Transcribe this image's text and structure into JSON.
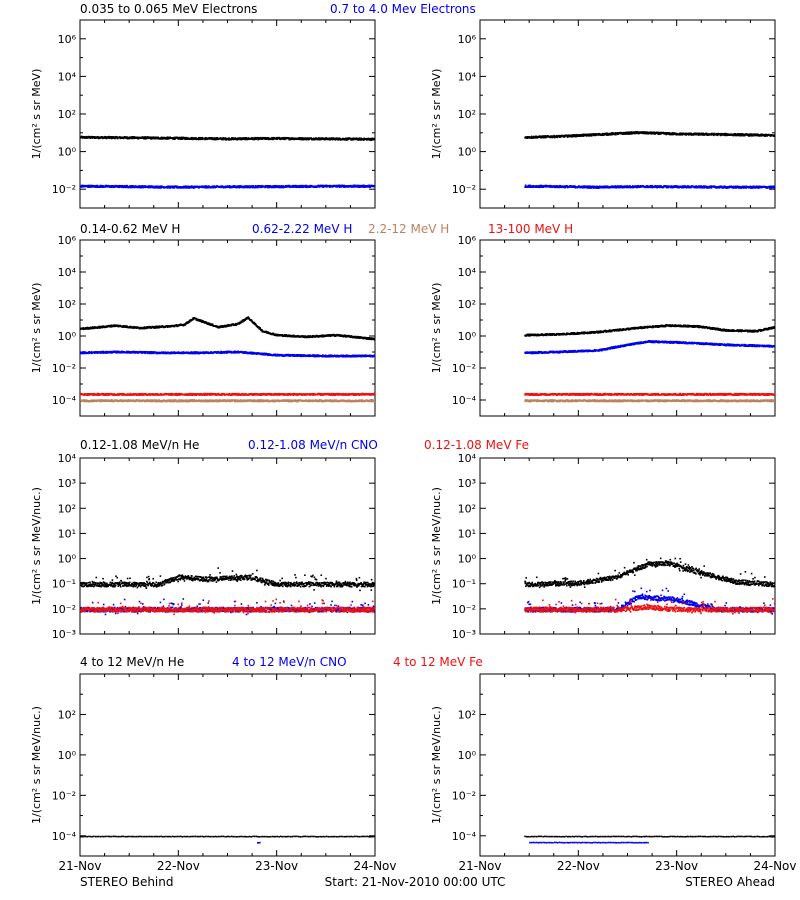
{
  "colors": {
    "black": "#000000",
    "blue": "#0000ee",
    "tan": "#c08060",
    "red": "#ee1111"
  },
  "footer": {
    "left": "STEREO Behind",
    "center": "Start: 21-Nov-2010 00:00 UTC",
    "right": "STEREO Ahead"
  },
  "x_ticks": [
    "21-Nov",
    "22-Nov",
    "23-Nov",
    "24-Nov"
  ],
  "chart_data": [
    {
      "type": "scatter",
      "panel": "electrons-behind",
      "legend": [
        {
          "text": "0.035 to 0.065 MeV Electrons",
          "color": "black"
        },
        {
          "text": "0.7 to 4.0 Mev Electrons",
          "color": "blue"
        }
      ],
      "ylabel": "1/(cm² s sr MeV)",
      "y_scale": "log",
      "ylim_exp": [
        -3,
        7
      ],
      "y_tick_exps": [
        -2,
        0,
        2,
        4,
        6
      ],
      "xlim_days": [
        0,
        3
      ],
      "series": [
        {
          "color": "black",
          "x_days": [
            0.0,
            0.5,
            1.0,
            1.5,
            2.0,
            2.5,
            3.0
          ],
          "log10_values": [
            0.8,
            0.78,
            0.75,
            0.72,
            0.74,
            0.72,
            0.7
          ]
        },
        {
          "color": "blue",
          "x_days": [
            0.0,
            0.5,
            1.0,
            1.5,
            2.0,
            2.5,
            3.0
          ],
          "log10_values": [
            -1.8,
            -1.82,
            -1.85,
            -1.83,
            -1.82,
            -1.8,
            -1.8
          ]
        }
      ]
    },
    {
      "type": "scatter",
      "panel": "electrons-ahead",
      "legend": [],
      "ylabel": "1/(cm² s sr MeV)",
      "y_scale": "log",
      "ylim_exp": [
        -3,
        7
      ],
      "y_tick_exps": [
        -2,
        0,
        2,
        4,
        6
      ],
      "xlim_days": [
        0,
        3
      ],
      "series": [
        {
          "color": "black",
          "x_days": [
            0.45,
            0.8,
            1.2,
            1.6,
            2.0,
            2.5,
            3.0
          ],
          "log10_values": [
            0.8,
            0.85,
            0.95,
            1.05,
            0.98,
            0.95,
            0.9
          ]
        },
        {
          "color": "blue",
          "x_days": [
            0.45,
            0.8,
            1.2,
            1.6,
            2.0,
            2.5,
            3.0
          ],
          "log10_values": [
            -1.8,
            -1.82,
            -1.85,
            -1.82,
            -1.83,
            -1.85,
            -1.85
          ]
        }
      ]
    },
    {
      "type": "scatter",
      "panel": "protons-behind",
      "legend": [
        {
          "text": "0.14-0.62 MeV H",
          "color": "black"
        },
        {
          "text": "0.62-2.22 MeV H",
          "color": "blue"
        },
        {
          "text": "2.2-12 MeV H",
          "color": "tan"
        },
        {
          "text": "13-100 MeV H",
          "color": "red"
        }
      ],
      "ylabel": "1/(cm² s sr MeV)",
      "y_scale": "log",
      "ylim_exp": [
        -5,
        6
      ],
      "y_tick_exps": [
        -4,
        -2,
        0,
        2,
        4,
        6
      ],
      "xlim_days": [
        0,
        3
      ],
      "series": [
        {
          "color": "black",
          "x_days": [
            0.0,
            0.2,
            0.35,
            0.6,
            0.9,
            1.05,
            1.15,
            1.4,
            1.6,
            1.7,
            1.85,
            2.0,
            2.3,
            2.6,
            3.0
          ],
          "log10_values": [
            0.5,
            0.6,
            0.7,
            0.55,
            0.65,
            0.75,
            1.15,
            0.6,
            0.8,
            1.2,
            0.35,
            0.1,
            0.0,
            0.1,
            -0.15
          ]
        },
        {
          "color": "blue",
          "x_days": [
            0.0,
            0.4,
            0.8,
            1.2,
            1.6,
            2.0,
            2.5,
            3.0
          ],
          "log10_values": [
            -1.0,
            -0.95,
            -1.0,
            -1.0,
            -0.95,
            -1.15,
            -1.2,
            -1.2
          ]
        },
        {
          "color": "tan",
          "x_days": [
            0.0,
            1.0,
            2.0,
            3.0
          ],
          "log10_values": [
            -4.0,
            -4.0,
            -4.0,
            -4.0
          ]
        },
        {
          "color": "red",
          "x_days": [
            0.0,
            1.0,
            2.0,
            3.0
          ],
          "log10_values": [
            -3.6,
            -3.6,
            -3.6,
            -3.6
          ]
        }
      ]
    },
    {
      "type": "scatter",
      "panel": "protons-ahead",
      "legend": [],
      "ylabel": "1/(cm² s sr MeV)",
      "y_scale": "log",
      "ylim_exp": [
        -5,
        6
      ],
      "y_tick_exps": [
        -4,
        -2,
        0,
        2,
        4,
        6
      ],
      "xlim_days": [
        0,
        3
      ],
      "series": [
        {
          "color": "black",
          "x_days": [
            0.45,
            0.8,
            1.2,
            1.6,
            1.9,
            2.2,
            2.5,
            2.8,
            3.0
          ],
          "log10_values": [
            0.1,
            0.15,
            0.3,
            0.55,
            0.7,
            0.65,
            0.4,
            0.35,
            0.6
          ]
        },
        {
          "color": "blue",
          "x_days": [
            0.45,
            0.8,
            1.2,
            1.5,
            1.7,
            2.0,
            2.5,
            3.0
          ],
          "log10_values": [
            -1.0,
            -0.95,
            -0.85,
            -0.5,
            -0.3,
            -0.35,
            -0.5,
            -0.6
          ]
        },
        {
          "color": "tan",
          "x_days": [
            0.45,
            1.5,
            3.0
          ],
          "log10_values": [
            -4.0,
            -4.0,
            -4.0
          ]
        },
        {
          "color": "red",
          "x_days": [
            0.45,
            1.5,
            3.0
          ],
          "log10_values": [
            -3.6,
            -3.6,
            -3.6
          ]
        }
      ]
    },
    {
      "type": "scatter",
      "panel": "ions-low-behind",
      "legend": [
        {
          "text": "0.12-1.08 MeV/n He",
          "color": "black"
        },
        {
          "text": "0.12-1.08 MeV/n CNO",
          "color": "blue"
        },
        {
          "text": "0.12-1.08 MeV Fe",
          "color": "red"
        }
      ],
      "ylabel": "1/(cm² s sr MeV/nuc.)",
      "y_scale": "log",
      "ylim_exp": [
        -3,
        4
      ],
      "y_tick_exps": [
        -3,
        -2,
        -1,
        0,
        1,
        2,
        3,
        4
      ],
      "xlim_days": [
        0,
        3
      ],
      "series": [
        {
          "color": "black",
          "x_days": [
            0.0,
            0.8,
            1.0,
            1.3,
            1.7,
            2.0,
            3.0
          ],
          "log10_values": [
            -1.0,
            -1.0,
            -0.7,
            -0.8,
            -0.7,
            -1.0,
            -1.0
          ]
        },
        {
          "color": "blue",
          "x_days": [
            0.0,
            1.5,
            3.0
          ],
          "log10_values": [
            -2.0,
            -2.0,
            -2.0
          ]
        },
        {
          "color": "red",
          "x_days": [
            0.0,
            1.5,
            3.0
          ],
          "log10_values": [
            -2.0,
            -2.0,
            -2.0
          ]
        }
      ]
    },
    {
      "type": "scatter",
      "panel": "ions-low-ahead",
      "legend": [],
      "ylabel": "1/(cm² s sr MeV/nuc.)",
      "y_scale": "log",
      "ylim_exp": [
        -3,
        4
      ],
      "y_tick_exps": [
        -3,
        -2,
        -1,
        0,
        1,
        2,
        3,
        4
      ],
      "xlim_days": [
        0,
        3
      ],
      "series": [
        {
          "color": "black",
          "x_days": [
            0.45,
            1.0,
            1.4,
            1.7,
            1.9,
            2.2,
            2.6,
            3.0
          ],
          "log10_values": [
            -1.0,
            -0.95,
            -0.7,
            -0.2,
            -0.15,
            -0.5,
            -0.9,
            -1.0
          ]
        },
        {
          "color": "blue",
          "x_days": [
            0.45,
            1.4,
            1.6,
            2.0,
            2.4,
            3.0
          ],
          "log10_values": [
            -2.0,
            -2.0,
            -1.5,
            -1.6,
            -2.0,
            -2.0
          ]
        },
        {
          "color": "red",
          "x_days": [
            0.45,
            1.4,
            1.7,
            2.0,
            3.0
          ],
          "log10_values": [
            -2.0,
            -2.0,
            -1.9,
            -2.0,
            -2.0
          ]
        }
      ]
    },
    {
      "type": "scatter",
      "panel": "ions-high-behind",
      "legend": [
        {
          "text": "4 to 12 MeV/n He",
          "color": "black"
        },
        {
          "text": "4 to 12 MeV/n CNO",
          "color": "blue"
        },
        {
          "text": "4 to 12 MeV Fe",
          "color": "red"
        }
      ],
      "ylabel": "1/(cm² s sr MeV/nuc.)",
      "y_scale": "log",
      "ylim_exp": [
        -5,
        4
      ],
      "y_tick_exps": [
        -4,
        -2,
        0,
        2
      ],
      "xlim_days": [
        0,
        3
      ],
      "series": [
        {
          "color": "black",
          "x_days": [
            0.0,
            1.0,
            2.0,
            3.0
          ],
          "log10_values": [
            -4.0,
            -4.0,
            -4.0,
            -4.0
          ]
        },
        {
          "color": "blue",
          "x_days": [
            1.8,
            1.82
          ],
          "log10_values": [
            -4.3,
            -4.3
          ]
        }
      ]
    },
    {
      "type": "scatter",
      "panel": "ions-high-ahead",
      "legend": [],
      "ylabel": "1/(cm² s sr MeV/nuc.)",
      "y_scale": "log",
      "ylim_exp": [
        -5,
        4
      ],
      "y_tick_exps": [
        -4,
        -2,
        0,
        2
      ],
      "xlim_days": [
        0,
        3
      ],
      "series": [
        {
          "color": "black",
          "x_days": [
            0.45,
            1.5,
            3.0
          ],
          "log10_values": [
            -4.0,
            -4.0,
            -4.0
          ]
        },
        {
          "color": "blue",
          "x_days": [
            0.5,
            0.9,
            1.3,
            1.7
          ],
          "log10_values": [
            -4.3,
            -4.3,
            -4.3,
            -4.3
          ]
        }
      ]
    }
  ]
}
